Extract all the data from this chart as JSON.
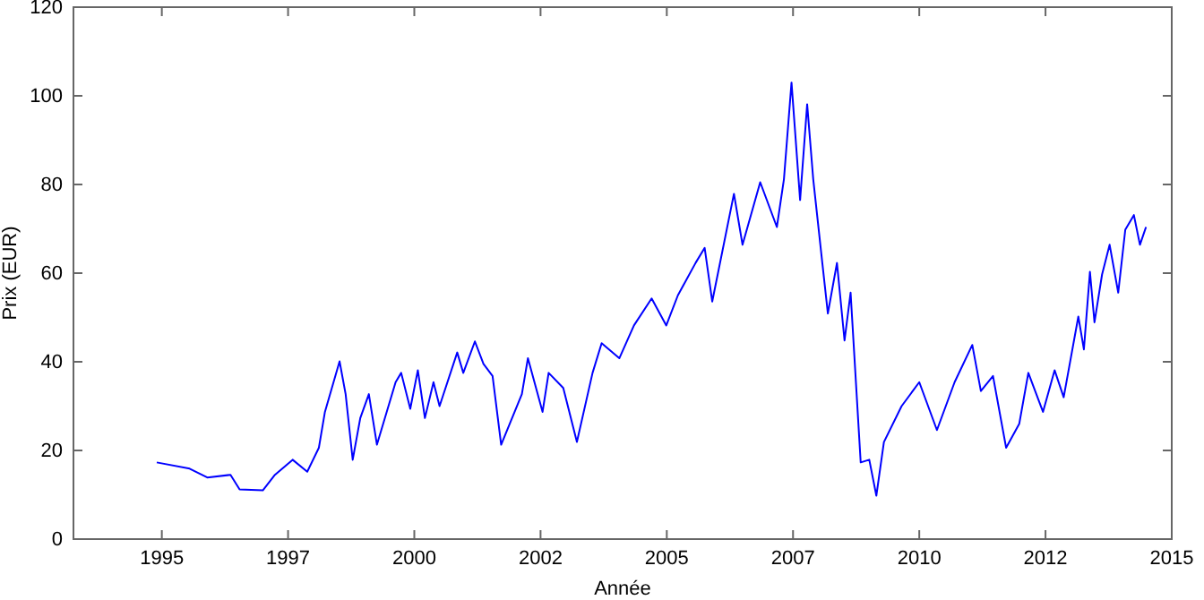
{
  "chart_data": {
    "type": "line",
    "xlabel": "Année",
    "ylabel": "Prix (EUR)",
    "grid": false,
    "marker": "none",
    "line_style": "solid",
    "xlim": [
      1993.25,
      2015
    ],
    "xticks": [
      1995,
      {
        "value": 1997.5,
        "label": "1997"
      },
      2000,
      {
        "value": 2002.5,
        "label": "2002"
      },
      2005,
      {
        "value": 2007.5,
        "label": "2007"
      },
      2010,
      {
        "value": 2012.5,
        "label": "2012"
      },
      2015
    ],
    "ylim": [
      0,
      120
    ],
    "yticks": [
      0,
      20,
      40,
      60,
      80,
      100,
      120
    ],
    "series": [
      {
        "color": "#0000ff",
        "x": [
          1994.9,
          1995.55,
          1995.9,
          1996.36,
          1996.54,
          1997.0,
          1997.24,
          1997.59,
          1997.88,
          1998.11,
          1998.23,
          1998.52,
          1998.64,
          1998.78,
          1998.93,
          1999.1,
          1999.26,
          1999.63,
          1999.74,
          1999.92,
          2000.07,
          2000.21,
          2000.38,
          2000.5,
          2000.85,
          2000.97,
          2001.2,
          2001.37,
          2001.55,
          2001.72,
          2002.13,
          2002.25,
          2002.54,
          2002.66,
          2002.95,
          2003.22,
          2003.53,
          2003.71,
          2004.06,
          2004.35,
          2004.7,
          2004.99,
          2005.22,
          2005.57,
          2005.75,
          2005.9,
          2006.33,
          2006.5,
          2006.85,
          2007.18,
          2007.32,
          2007.47,
          2007.64,
          2007.78,
          2007.9,
          2008.08,
          2008.19,
          2008.37,
          2008.52,
          2008.64,
          2008.84,
          2009.01,
          2009.15,
          2009.3,
          2009.65,
          2010.0,
          2010.35,
          2010.7,
          2011.05,
          2011.22,
          2011.46,
          2011.72,
          2011.98,
          2012.16,
          2012.45,
          2012.68,
          2012.86,
          2013.15,
          2013.26,
          2013.38,
          2013.47,
          2013.62,
          2013.77,
          2013.94,
          2014.08,
          2014.25,
          2014.37,
          2014.49
        ],
        "values": [
          17.3,
          15.9,
          13.9,
          14.5,
          11.2,
          11.0,
          14.5,
          17.9,
          15.2,
          20.6,
          28.7,
          40.1,
          32.7,
          17.9,
          27.3,
          32.7,
          21.3,
          35.4,
          37.5,
          29.4,
          38.1,
          27.3,
          35.4,
          30.0,
          42.1,
          37.5,
          44.6,
          39.5,
          36.8,
          21.3,
          32.7,
          40.8,
          28.7,
          37.5,
          34.1,
          21.9,
          37.5,
          44.2,
          40.8,
          48.2,
          54.3,
          48.2,
          55.0,
          62.3,
          65.7,
          53.6,
          77.9,
          66.4,
          80.5,
          70.4,
          81.2,
          103.0,
          76.5,
          98.1,
          81.2,
          62.3,
          50.9,
          62.3,
          44.8,
          55.6,
          17.3,
          17.9,
          9.8,
          21.9,
          30.0,
          35.4,
          24.6,
          35.4,
          43.8,
          33.4,
          36.8,
          20.6,
          26.0,
          37.5,
          28.7,
          38.1,
          32.0,
          50.2,
          42.8,
          60.3,
          48.9,
          59.7,
          66.4,
          55.6,
          69.8,
          73.1,
          66.4,
          70.4
        ]
      }
    ]
  }
}
